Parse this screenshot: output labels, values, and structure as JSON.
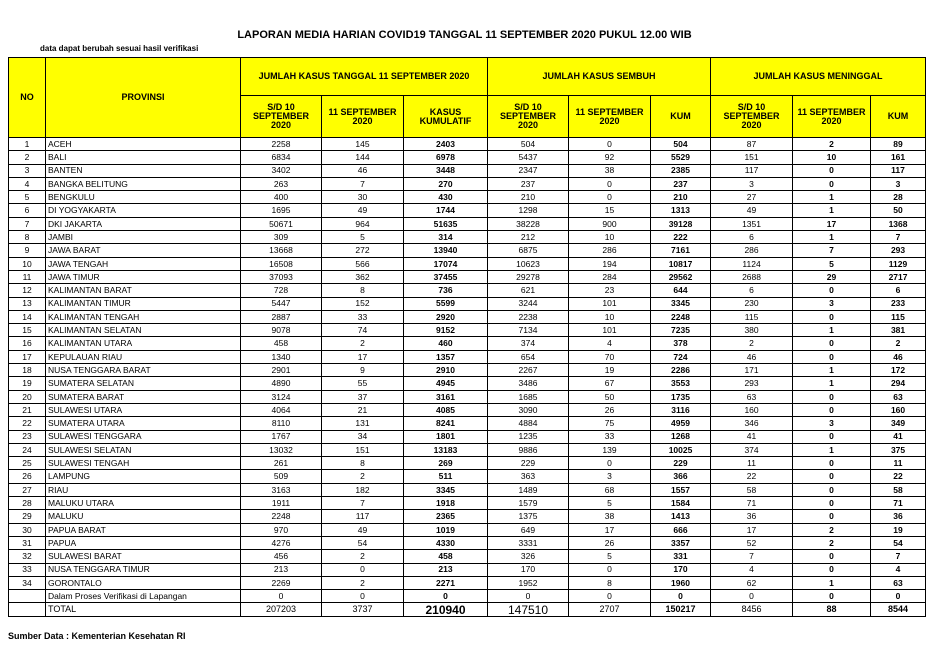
{
  "header": {
    "title": "LAPORAN MEDIA HARIAN COVID19 TANGGAL 11 SEPTEMBER 2020 PUKUL 12.00 WIB",
    "note": "data dapat berubah sesuai hasil verifikasi"
  },
  "table": {
    "columns": {
      "no": "NO",
      "province": "PROVINSI",
      "groups": [
        {
          "label": "JUMLAH KASUS TANGGAL 11 SEPTEMBER 2020",
          "sub": [
            "S/D 10 SEPTEMBER 2020",
            "11 SEPTEMBER 2020",
            "KASUS KUMULATIF"
          ]
        },
        {
          "label": "JUMLAH KASUS SEMBUH",
          "sub": [
            "S/D 10 SEPTEMBER 2020",
            "11 SEPTEMBER 2020",
            "KUM"
          ]
        },
        {
          "label": "JUMLAH KASUS MENINGGAL",
          "sub": [
            "S/D 10 SEPTEMBER 2020",
            "11 SEPTEMBER 2020",
            "KUM"
          ]
        }
      ]
    },
    "rows": [
      {
        "no": "1",
        "name": "ACEH",
        "values": [
          2258,
          145,
          2403,
          504,
          0,
          504,
          87,
          2,
          89
        ]
      },
      {
        "no": "2",
        "name": "BALI",
        "values": [
          6834,
          144,
          6978,
          5437,
          92,
          5529,
          151,
          10,
          161
        ]
      },
      {
        "no": "3",
        "name": "BANTEN",
        "values": [
          3402,
          46,
          3448,
          2347,
          38,
          2385,
          117,
          0,
          117
        ]
      },
      {
        "no": "4",
        "name": "BANGKA BELITUNG",
        "values": [
          263,
          7,
          270,
          237,
          0,
          237,
          3,
          0,
          3
        ]
      },
      {
        "no": "5",
        "name": "BENGKULU",
        "values": [
          400,
          30,
          430,
          210,
          0,
          210,
          27,
          1,
          28
        ]
      },
      {
        "no": "6",
        "name": "DI YOGYAKARTA",
        "values": [
          1695,
          49,
          1744,
          1298,
          15,
          1313,
          49,
          1,
          50
        ]
      },
      {
        "no": "7",
        "name": "DKI JAKARTA",
        "values": [
          50671,
          964,
          51635,
          38228,
          900,
          39128,
          1351,
          17,
          1368
        ]
      },
      {
        "no": "8",
        "name": "JAMBI",
        "values": [
          309,
          5,
          314,
          212,
          10,
          222,
          6,
          1,
          7
        ]
      },
      {
        "no": "9",
        "name": "JAWA BARAT",
        "values": [
          13668,
          272,
          13940,
          6875,
          286,
          7161,
          286,
          7,
          293
        ]
      },
      {
        "no": "10",
        "name": "JAWA TENGAH",
        "values": [
          16508,
          566,
          17074,
          10623,
          194,
          10817,
          1124,
          5,
          1129
        ]
      },
      {
        "no": "11",
        "name": "JAWA TIMUR",
        "values": [
          37093,
          362,
          37455,
          29278,
          284,
          29562,
          2688,
          29,
          2717
        ]
      },
      {
        "no": "12",
        "name": "KALIMANTAN BARAT",
        "values": [
          728,
          8,
          736,
          621,
          23,
          644,
          6,
          0,
          6
        ]
      },
      {
        "no": "13",
        "name": "KALIMANTAN TIMUR",
        "values": [
          5447,
          152,
          5599,
          3244,
          101,
          3345,
          230,
          3,
          233
        ]
      },
      {
        "no": "14",
        "name": "KALIMANTAN TENGAH",
        "values": [
          2887,
          33,
          2920,
          2238,
          10,
          2248,
          115,
          0,
          115
        ]
      },
      {
        "no": "15",
        "name": "KALIMANTAN SELATAN",
        "values": [
          9078,
          74,
          9152,
          7134,
          101,
          7235,
          380,
          1,
          381
        ]
      },
      {
        "no": "16",
        "name": "KALIMANTAN UTARA",
        "values": [
          458,
          2,
          460,
          374,
          4,
          378,
          2,
          0,
          2
        ]
      },
      {
        "no": "17",
        "name": "KEPULAUAN RIAU",
        "values": [
          1340,
          17,
          1357,
          654,
          70,
          724,
          46,
          0,
          46
        ]
      },
      {
        "no": "18",
        "name": "NUSA TENGGARA BARAT",
        "values": [
          2901,
          9,
          2910,
          2267,
          19,
          2286,
          171,
          1,
          172
        ]
      },
      {
        "no": "19",
        "name": "SUMATERA SELATAN",
        "values": [
          4890,
          55,
          4945,
          3486,
          67,
          3553,
          293,
          1,
          294
        ]
      },
      {
        "no": "20",
        "name": "SUMATERA BARAT",
        "values": [
          3124,
          37,
          3161,
          1685,
          50,
          1735,
          63,
          0,
          63
        ]
      },
      {
        "no": "21",
        "name": "SULAWESI UTARA",
        "values": [
          4064,
          21,
          4085,
          3090,
          26,
          3116,
          160,
          0,
          160
        ]
      },
      {
        "no": "22",
        "name": "SUMATERA UTARA",
        "values": [
          8110,
          131,
          8241,
          4884,
          75,
          4959,
          346,
          3,
          349
        ]
      },
      {
        "no": "23",
        "name": "SULAWESI TENGGARA",
        "values": [
          1767,
          34,
          1801,
          1235,
          33,
          1268,
          41,
          0,
          41
        ]
      },
      {
        "no": "24",
        "name": "SULAWESI SELATAN",
        "values": [
          13032,
          151,
          13183,
          9886,
          139,
          10025,
          374,
          1,
          375
        ]
      },
      {
        "no": "25",
        "name": "SULAWESI TENGAH",
        "values": [
          261,
          8,
          269,
          229,
          0,
          229,
          11,
          0,
          11
        ]
      },
      {
        "no": "26",
        "name": "LAMPUNG",
        "values": [
          509,
          2,
          511,
          363,
          3,
          366,
          22,
          0,
          22
        ]
      },
      {
        "no": "27",
        "name": "RIAU",
        "values": [
          3163,
          182,
          3345,
          1489,
          68,
          1557,
          58,
          0,
          58
        ]
      },
      {
        "no": "28",
        "name": "MALUKU UTARA",
        "values": [
          1911,
          7,
          1918,
          1579,
          5,
          1584,
          71,
          0,
          71
        ]
      },
      {
        "no": "29",
        "name": "MALUKU",
        "values": [
          2248,
          117,
          2365,
          1375,
          38,
          1413,
          36,
          0,
          36
        ]
      },
      {
        "no": "30",
        "name": "PAPUA BARAT",
        "values": [
          970,
          49,
          1019,
          649,
          17,
          666,
          17,
          2,
          19
        ]
      },
      {
        "no": "31",
        "name": "PAPUA",
        "values": [
          4276,
          54,
          4330,
          3331,
          26,
          3357,
          52,
          2,
          54
        ]
      },
      {
        "no": "32",
        "name": "SULAWESI BARAT",
        "values": [
          456,
          2,
          458,
          326,
          5,
          331,
          7,
          0,
          7
        ]
      },
      {
        "no": "33",
        "name": "NUSA TENGGARA TIMUR",
        "values": [
          213,
          0,
          213,
          170,
          0,
          170,
          4,
          0,
          4
        ]
      },
      {
        "no": "34",
        "name": "GORONTALO",
        "values": [
          2269,
          2,
          2271,
          1952,
          8,
          1960,
          62,
          1,
          63
        ]
      },
      {
        "name": "Dalam Proses Verifikasi di Lapangan",
        "values": [
          0,
          0,
          0,
          0,
          0,
          0,
          0,
          0,
          0
        ]
      },
      {
        "name": "TOTAL",
        "values": [
          207203,
          3737,
          210940,
          147510,
          2707,
          150217,
          8456,
          88,
          8544
        ]
      }
    ]
  },
  "footer": {
    "source": "Sumber Data : Kementerian Kesehatan RI"
  }
}
